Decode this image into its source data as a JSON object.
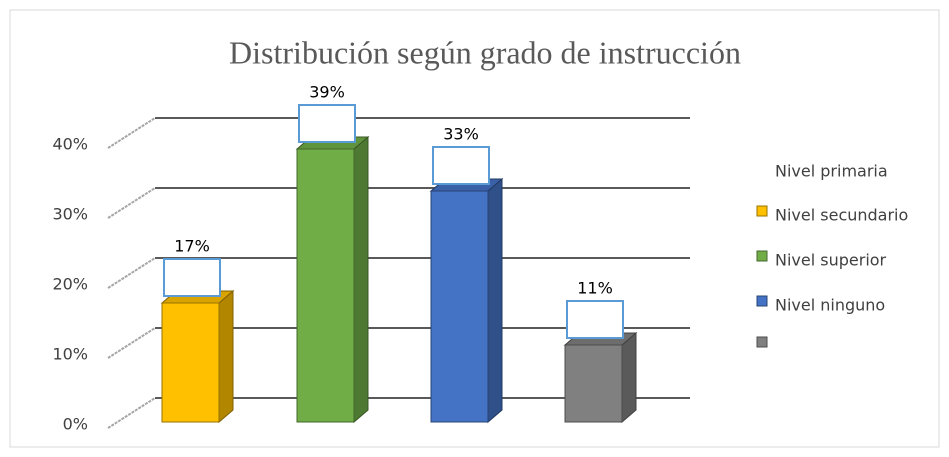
{
  "chart_data": {
    "type": "bar3d",
    "title": "Distribución según grado de instrucción",
    "categories": [
      null,
      null,
      null,
      null
    ],
    "values": [
      17,
      39,
      33,
      11
    ],
    "value_labels": [
      "17%",
      "39%",
      "33%",
      "11%"
    ],
    "colors": [
      "#ffc000",
      "#70ad47",
      "#4472c4",
      "#808080"
    ],
    "ylim": [
      0,
      40
    ],
    "yticks": [
      {
        "value": 0,
        "label": "0%"
      },
      {
        "value": 10,
        "label": "10%"
      },
      {
        "value": 20,
        "label": "20%"
      },
      {
        "value": 30,
        "label": "30%"
      },
      {
        "value": 40,
        "label": "40%"
      }
    ],
    "grid": true,
    "legend": {
      "labels": [
        "Nivel primaria",
        "Nivel secundario",
        "Nivel superior",
        "Nivel ninguno"
      ]
    }
  }
}
